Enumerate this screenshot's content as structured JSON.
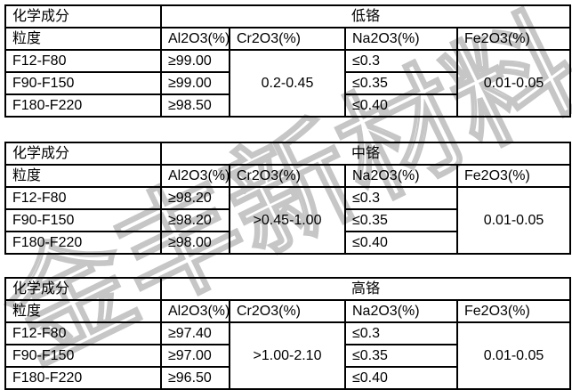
{
  "watermark": {
    "text": "金丰新材料",
    "color": "#c6c6c6"
  },
  "tables": [
    {
      "chem_label": "化学成分",
      "grade": "低铬",
      "size_label": "粒度",
      "col_headers": [
        "Al2O3(%)",
        "Cr2O3(%)",
        "Na2O3(%)",
        "Fe2O3(%)"
      ],
      "rows": [
        {
          "grit": "F12-F80",
          "al2o3": "≥99.00",
          "na2o3": "≤0.3"
        },
        {
          "grit": "F90-F150",
          "al2o3": "≥99.00",
          "na2o3": "≤0.35"
        },
        {
          "grit": "F180-F220",
          "al2o3": "≥98.50",
          "na2o3": "≤0.40"
        }
      ],
      "cr2o3": "0.2-0.45",
      "fe2o3": "0.01-0.05"
    },
    {
      "chem_label": "化学成分",
      "grade": "中铬",
      "size_label": "粒度",
      "col_headers": [
        "Al2O3(%)",
        "Cr2O3(%)",
        "Na2O3(%)",
        "Fe2O3(%)"
      ],
      "rows": [
        {
          "grit": "F12-F80",
          "al2o3": "≥98.20",
          "na2o3": "≤0.3"
        },
        {
          "grit": "F90-F150",
          "al2o3": "≥98.20",
          "na2o3": "≤0.35"
        },
        {
          "grit": "F180-F220",
          "al2o3": "≥98.00",
          "na2o3": "≤0.40"
        }
      ],
      "cr2o3": ">0.45-1.00",
      "fe2o3": "0.01-0.05"
    },
    {
      "chem_label": "化学成分",
      "grade": "高铬",
      "size_label": "粒度",
      "col_headers": [
        "Al2O3(%)",
        "Cr2O3(%)",
        "Na2O3(%)",
        "Fe2O3(%)"
      ],
      "rows": [
        {
          "grit": "F12-F80",
          "al2o3": "≥97.40",
          "na2o3": "≤0.3"
        },
        {
          "grit": "F90-F150",
          "al2o3": "≥97.00",
          "na2o3": "≤0.35"
        },
        {
          "grit": "F180-F220",
          "al2o3": "≥96.50",
          "na2o3": "≤0.40"
        }
      ],
      "cr2o3": ">1.00-2.10",
      "fe2o3": "0.01-0.05"
    }
  ]
}
